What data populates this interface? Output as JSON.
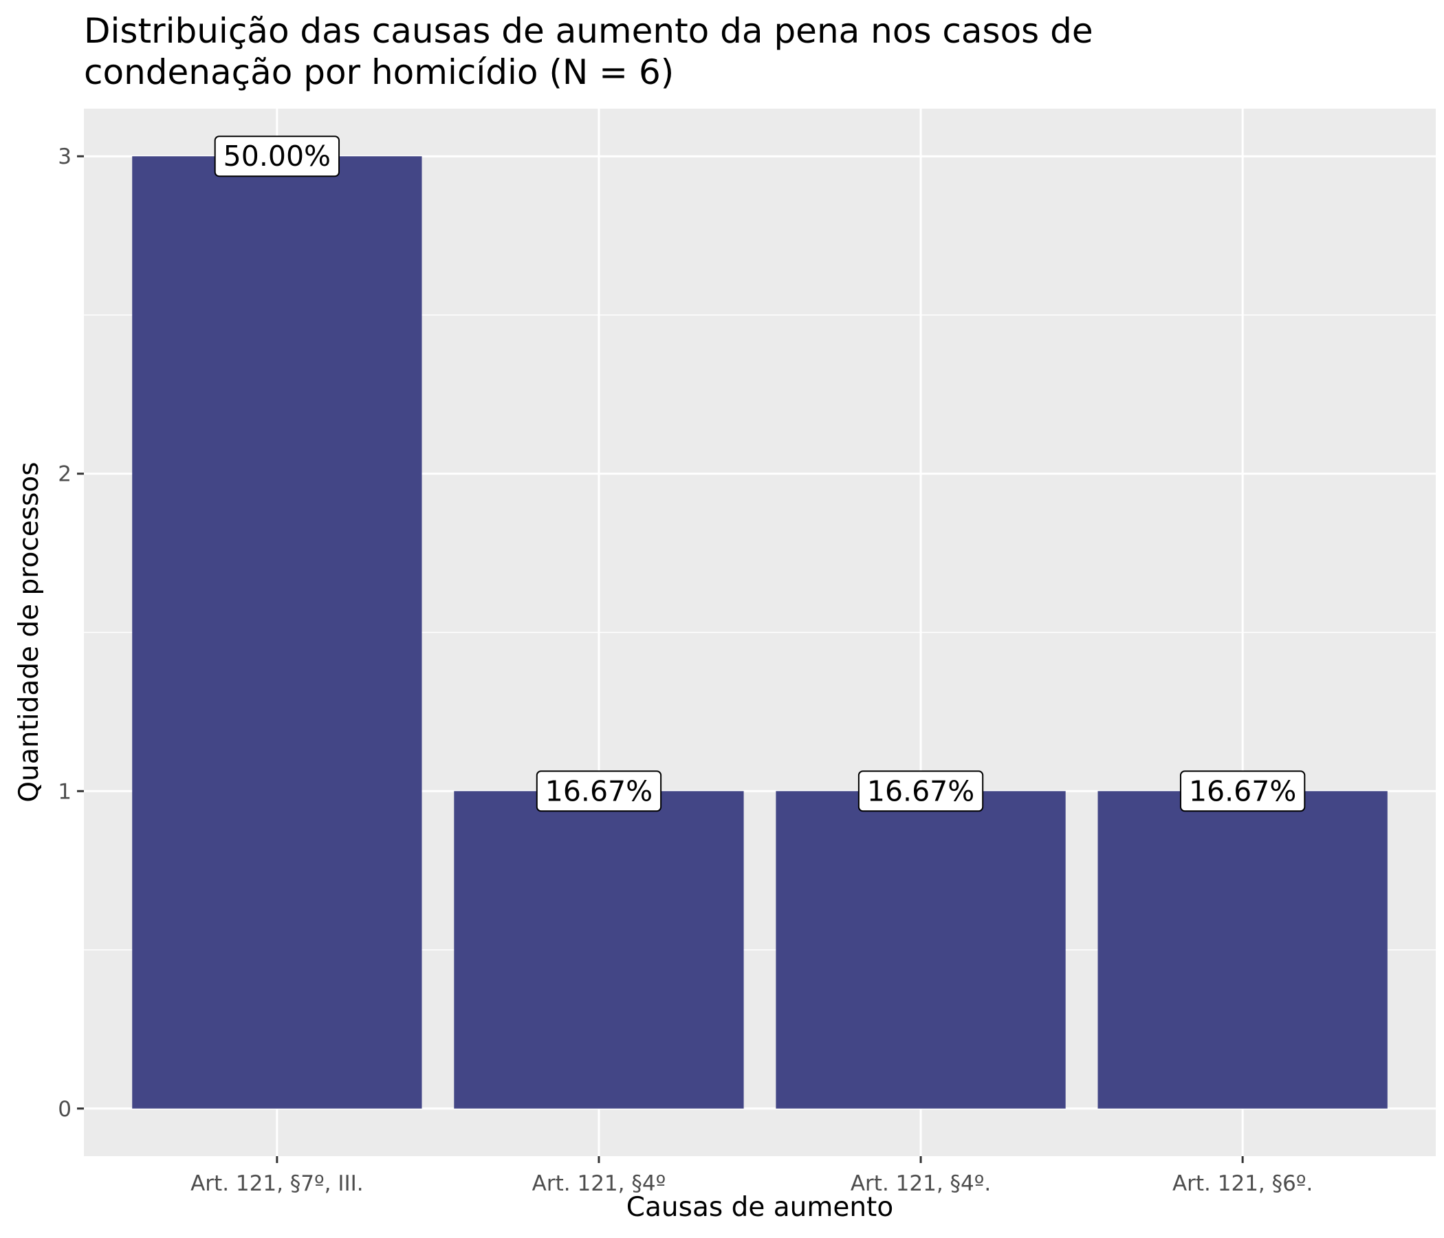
{
  "chart_data": {
    "type": "bar",
    "title": "Distribuição das causas de aumento da pena nos casos de condenação por homicídio (N = 6)",
    "title_lines": [
      "Distribuição das causas de aumento da pena nos casos de",
      "condenação por homicídio (N = 6)"
    ],
    "xlabel": "Causas de aumento",
    "ylabel": "Quantidade de processos",
    "categories": [
      "Art. 121, §7º, III.",
      "Art. 121, §4º",
      "Art. 121, §4º.",
      "Art. 121, §6º."
    ],
    "values": [
      3,
      1,
      1,
      1
    ],
    "data_labels": [
      "50.00%",
      "16.67%",
      "16.67%",
      "16.67%"
    ],
    "yticks": [
      0,
      1,
      2,
      3
    ],
    "ylim": [
      -0.15,
      3.15
    ],
    "grid": true,
    "legend": "none",
    "colors": {
      "bar": "#434686",
      "panel": "#ebebeb",
      "grid": "#ffffff"
    }
  }
}
